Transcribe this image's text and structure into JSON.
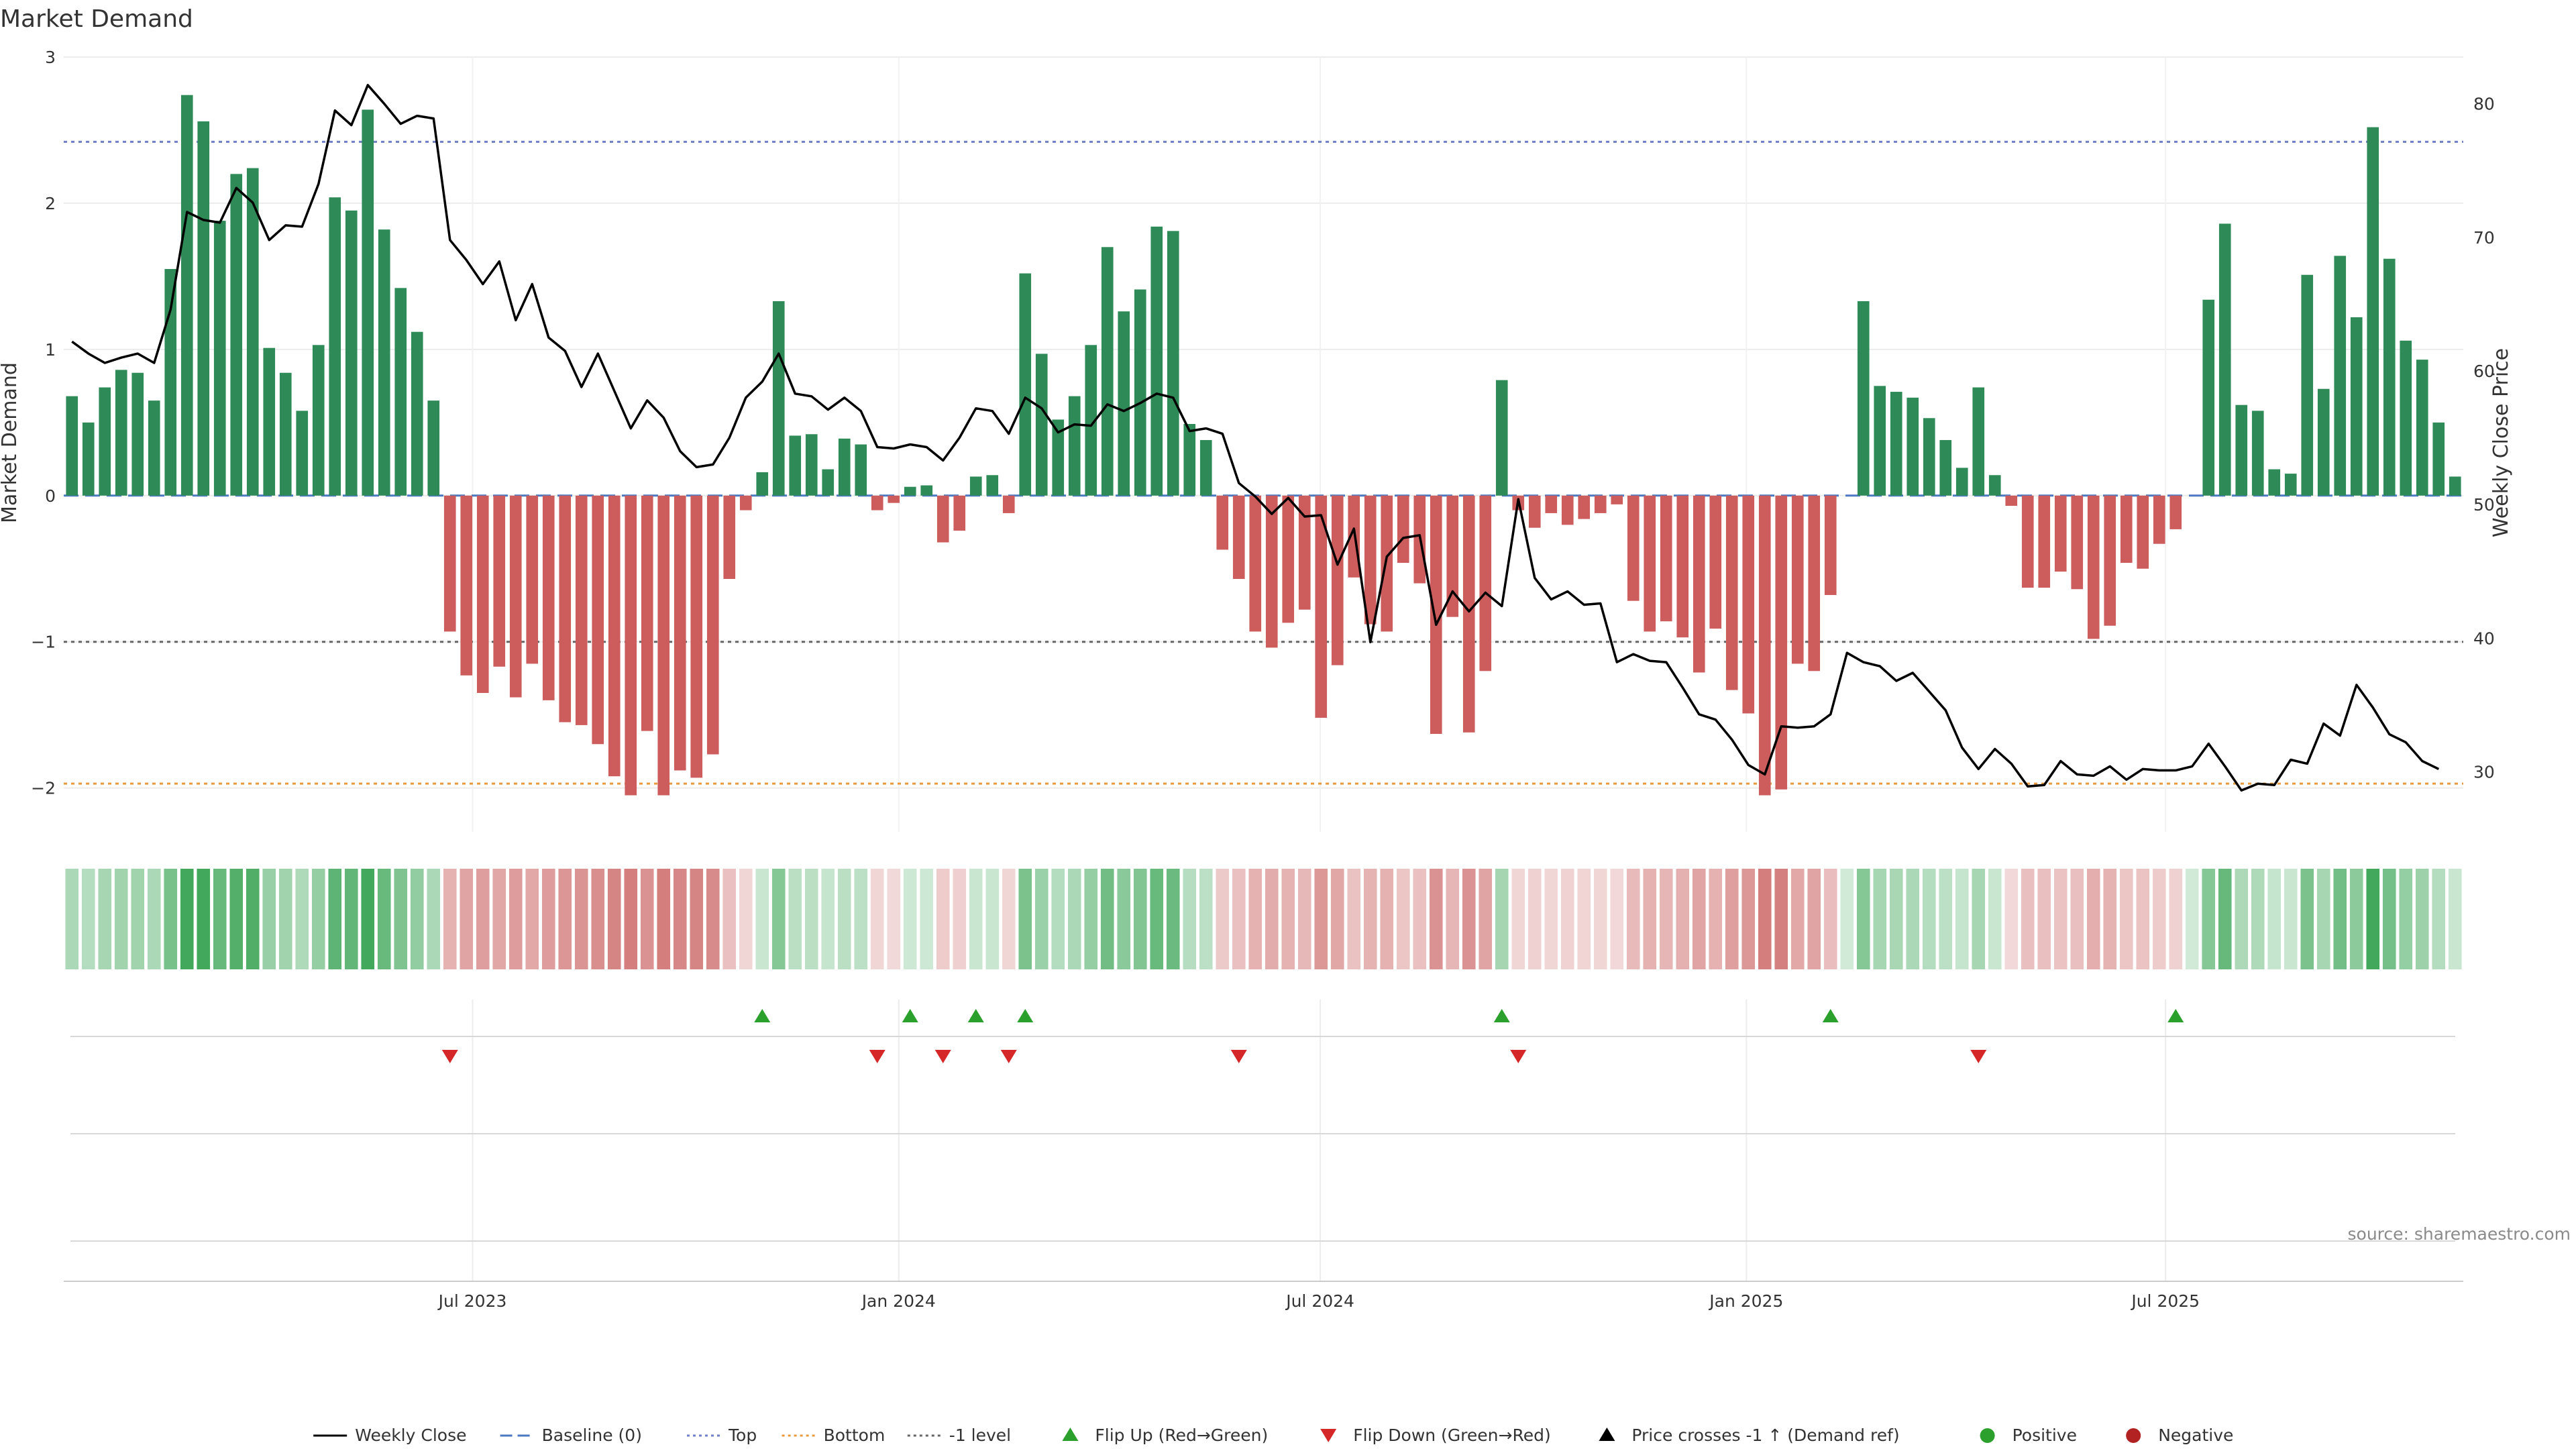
{
  "chart_data": {
    "type": "bar",
    "title": "Market Demand",
    "source_text": "source: sharemaestro.com",
    "ylabel_left": "Market Demand",
    "ylabel_right": "Weekly Close Price",
    "ylim_left": [
      -2.3,
      3
    ],
    "ylim_right": [
      25.5,
      83.5
    ],
    "left_ticks": [
      3,
      2,
      1,
      0,
      -1,
      -2
    ],
    "left_tick_labels": [
      "3",
      "2",
      "1",
      "0",
      "−1",
      "−2"
    ],
    "right_ticks": [
      80,
      70,
      60,
      50,
      40,
      30
    ],
    "right_tick_labels": [
      "80",
      "70",
      "60",
      "50",
      "40",
      "30"
    ],
    "x_start": "2023-01-09",
    "x_end": "2025-11-03",
    "x_ticks": [
      "2023-07-01",
      "2024-01-01",
      "2024-07-01",
      "2025-01-01",
      "2025-07-01"
    ],
    "x_tick_labels": [
      "Jul 2023",
      "Jan 2024",
      "Jul 2024",
      "Jan 2025",
      "Jul 2025"
    ],
    "reference_lines": [
      {
        "name": "Top",
        "value": 2.42,
        "color": "#6f7fc9",
        "style": "dotted"
      },
      {
        "name": "Baseline (0)",
        "value": 0,
        "color": "#4a78c2",
        "style": "dashed"
      },
      {
        "name": "-1 level",
        "value": -1,
        "color": "#666666",
        "style": "dotted"
      },
      {
        "name": "Bottom",
        "value": -1.97,
        "color": "#e89a3c",
        "style": "dotted"
      }
    ],
    "demand_values": [
      0.68,
      0.5,
      0.74,
      0.86,
      0.84,
      0.65,
      1.55,
      2.74,
      2.56,
      1.88,
      2.2,
      2.24,
      1.01,
      0.84,
      0.58,
      1.03,
      2.04,
      1.95,
      2.64,
      1.82,
      1.42,
      1.12,
      0.65,
      -0.93,
      -1.23,
      -1.35,
      -1.17,
      -1.38,
      -1.15,
      -1.4,
      -1.55,
      -1.57,
      -1.7,
      -1.92,
      -2.05,
      -1.61,
      -2.05,
      -1.88,
      -1.93,
      -1.77,
      -0.57,
      -0.1,
      0.16,
      1.33,
      0.41,
      0.42,
      0.18,
      0.39,
      0.35,
      -0.1,
      -0.05,
      0.06,
      0.07,
      -0.32,
      -0.24,
      0.13,
      0.14,
      -0.12,
      1.52,
      0.97,
      0.52,
      0.68,
      1.03,
      1.7,
      1.26,
      1.41,
      1.84,
      1.81,
      0.49,
      0.38,
      -0.37,
      -0.57,
      -0.93,
      -1.04,
      -0.87,
      -0.78,
      -1.52,
      -1.16,
      -0.56,
      -0.88,
      -0.93,
      -0.46,
      -0.6,
      -1.63,
      -0.83,
      -1.62,
      -1.2,
      0.79,
      -0.1,
      -0.22,
      -0.12,
      -0.2,
      -0.16,
      -0.12,
      -0.06,
      -0.72,
      -0.93,
      -0.86,
      -0.97,
      -1.21,
      -0.91,
      -1.33,
      -1.49,
      -2.05,
      -2.01,
      -1.15,
      -1.2,
      -0.68,
      0,
      1.33,
      0.75,
      0.71,
      0.67,
      0.53,
      0.38,
      0.19,
      0.74,
      0.14,
      -0.07,
      -0.63,
      -0.63,
      -0.52,
      -0.64,
      -0.98,
      -0.89,
      -0.46,
      -0.5,
      -0.33,
      -0.23,
      0,
      1.34,
      1.86,
      0.62,
      0.58,
      0.18,
      0.15,
      1.51,
      0.73,
      1.64,
      1.22,
      2.52,
      1.62,
      1.06,
      0.93,
      0.5,
      0.13
    ],
    "price_values": [
      62.2,
      61.3,
      60.6,
      61.0,
      61.3,
      60.6,
      64.6,
      71.9,
      71.3,
      71.1,
      73.7,
      72.6,
      69.8,
      70.9,
      70.8,
      74.0,
      79.5,
      78.4,
      81.4,
      80.0,
      78.5,
      79.1,
      78.9,
      69.8,
      68.3,
      66.5,
      68.2,
      63.8,
      66.5,
      62.5,
      61.5,
      58.8,
      61.3,
      58.5,
      55.7,
      57.8,
      56.5,
      54.0,
      52.8,
      53.0,
      55.0,
      58.0,
      59.2,
      61.3,
      58.3,
      58.1,
      57.1,
      58.0,
      57.0,
      54.3,
      54.2,
      54.5,
      54.3,
      53.3,
      55.0,
      57.2,
      57.0,
      55.3,
      58.0,
      57.2,
      55.4,
      56.0,
      55.9,
      57.5,
      57.0,
      57.6,
      58.3,
      58.0,
      55.5,
      55.7,
      55.3,
      51.6,
      50.6,
      49.3,
      50.5,
      49.1,
      49.2,
      45.5,
      48.2,
      39.7,
      46.1,
      47.5,
      47.7,
      41.0,
      43.5,
      42.0,
      43.4,
      42.4,
      50.4,
      44.5,
      42.9,
      43.5,
      42.5,
      42.6,
      38.2,
      38.8,
      38.3,
      38.2,
      36.3,
      34.3,
      33.9,
      32.4,
      30.5,
      29.8,
      33.4,
      33.3,
      33.4,
      34.3,
      38.9,
      38.2,
      37.9,
      36.8,
      37.4,
      36.0,
      34.6,
      31.8,
      30.2,
      31.7,
      30.6,
      28.9,
      29.0,
      30.8,
      29.8,
      29.7,
      30.4,
      29.4,
      30.2,
      30.1,
      30.1,
      30.4,
      32.1,
      30.4,
      28.6,
      29.1,
      29.0,
      30.9,
      30.6,
      33.6,
      32.7,
      36.5,
      34.8,
      32.8,
      32.2,
      30.8,
      30.2
    ],
    "flips_up_weeks": [
      42,
      51,
      55,
      58,
      87,
      107,
      128
    ],
    "flips_down_weeks": [
      23,
      49,
      53,
      57,
      71,
      88,
      116
    ],
    "legend": [
      {
        "label": "Weekly Close",
        "marker": "solid-line",
        "color": "#000000"
      },
      {
        "label": "Baseline (0)",
        "marker": "dashed-line",
        "color": "#4a78c2"
      },
      {
        "label": "Top",
        "marker": "dotted-line",
        "color": "#6f7fc9"
      },
      {
        "label": "Bottom",
        "marker": "dotted-line",
        "color": "#e89a3c"
      },
      {
        "label": "-1 level",
        "marker": "dotted-line",
        "color": "#666666"
      },
      {
        "label": "Flip Up (Red→Green)",
        "marker": "triangle-up",
        "color": "#2ca02c"
      },
      {
        "label": "Flip Down (Green→Red)",
        "marker": "triangle-down",
        "color": "#d62728"
      },
      {
        "label": "Price crosses -1 ↑ (Demand ref)",
        "marker": "triangle-up",
        "color": "#000000"
      },
      {
        "label": "Positive",
        "marker": "circle",
        "color": "#2ca02c"
      },
      {
        "label": "Negative",
        "marker": "circle",
        "color": "#b22222"
      }
    ],
    "colors": {
      "positive_bar": "#2e8b57",
      "negative_bar": "#cd5c5c",
      "positive_strip": "#2e9e4a",
      "negative_strip": "#c85a5a",
      "flip_up": "#2ca02c",
      "flip_down": "#d62728",
      "price_line": "#000000"
    }
  }
}
